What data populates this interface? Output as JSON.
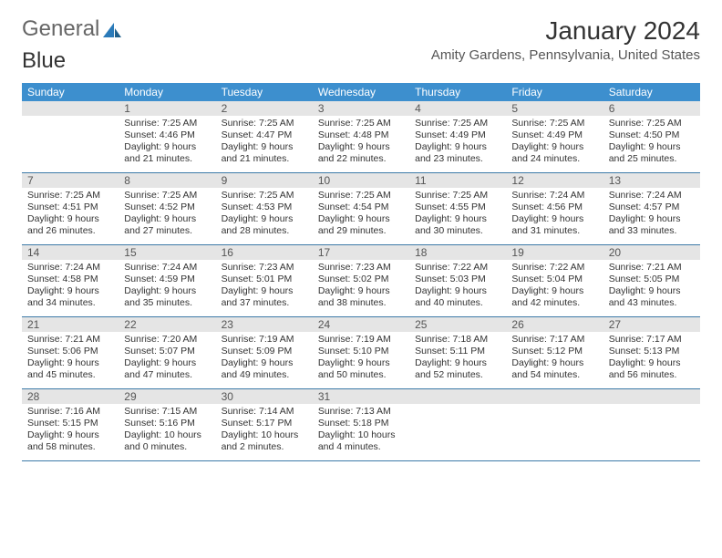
{
  "brand": {
    "part1": "General",
    "part2": "Blue"
  },
  "title": "January 2024",
  "location": "Amity Gardens, Pennsylvania, United States",
  "colors": {
    "header_bg": "#3d8fce",
    "header_text": "#ffffff",
    "daynum_bg": "#e5e5e5",
    "row_border": "#3d7aa8",
    "brand_blue": "#2a7ab9"
  },
  "weekdays": [
    "Sunday",
    "Monday",
    "Tuesday",
    "Wednesday",
    "Thursday",
    "Friday",
    "Saturday"
  ],
  "weeks": [
    [
      {
        "n": "",
        "sr": "",
        "ss": "",
        "d1": "",
        "d2": ""
      },
      {
        "n": "1",
        "sr": "Sunrise: 7:25 AM",
        "ss": "Sunset: 4:46 PM",
        "d1": "Daylight: 9 hours",
        "d2": "and 21 minutes."
      },
      {
        "n": "2",
        "sr": "Sunrise: 7:25 AM",
        "ss": "Sunset: 4:47 PM",
        "d1": "Daylight: 9 hours",
        "d2": "and 21 minutes."
      },
      {
        "n": "3",
        "sr": "Sunrise: 7:25 AM",
        "ss": "Sunset: 4:48 PM",
        "d1": "Daylight: 9 hours",
        "d2": "and 22 minutes."
      },
      {
        "n": "4",
        "sr": "Sunrise: 7:25 AM",
        "ss": "Sunset: 4:49 PM",
        "d1": "Daylight: 9 hours",
        "d2": "and 23 minutes."
      },
      {
        "n": "5",
        "sr": "Sunrise: 7:25 AM",
        "ss": "Sunset: 4:49 PM",
        "d1": "Daylight: 9 hours",
        "d2": "and 24 minutes."
      },
      {
        "n": "6",
        "sr": "Sunrise: 7:25 AM",
        "ss": "Sunset: 4:50 PM",
        "d1": "Daylight: 9 hours",
        "d2": "and 25 minutes."
      }
    ],
    [
      {
        "n": "7",
        "sr": "Sunrise: 7:25 AM",
        "ss": "Sunset: 4:51 PM",
        "d1": "Daylight: 9 hours",
        "d2": "and 26 minutes."
      },
      {
        "n": "8",
        "sr": "Sunrise: 7:25 AM",
        "ss": "Sunset: 4:52 PM",
        "d1": "Daylight: 9 hours",
        "d2": "and 27 minutes."
      },
      {
        "n": "9",
        "sr": "Sunrise: 7:25 AM",
        "ss": "Sunset: 4:53 PM",
        "d1": "Daylight: 9 hours",
        "d2": "and 28 minutes."
      },
      {
        "n": "10",
        "sr": "Sunrise: 7:25 AM",
        "ss": "Sunset: 4:54 PM",
        "d1": "Daylight: 9 hours",
        "d2": "and 29 minutes."
      },
      {
        "n": "11",
        "sr": "Sunrise: 7:25 AM",
        "ss": "Sunset: 4:55 PM",
        "d1": "Daylight: 9 hours",
        "d2": "and 30 minutes."
      },
      {
        "n": "12",
        "sr": "Sunrise: 7:24 AM",
        "ss": "Sunset: 4:56 PM",
        "d1": "Daylight: 9 hours",
        "d2": "and 31 minutes."
      },
      {
        "n": "13",
        "sr": "Sunrise: 7:24 AM",
        "ss": "Sunset: 4:57 PM",
        "d1": "Daylight: 9 hours",
        "d2": "and 33 minutes."
      }
    ],
    [
      {
        "n": "14",
        "sr": "Sunrise: 7:24 AM",
        "ss": "Sunset: 4:58 PM",
        "d1": "Daylight: 9 hours",
        "d2": "and 34 minutes."
      },
      {
        "n": "15",
        "sr": "Sunrise: 7:24 AM",
        "ss": "Sunset: 4:59 PM",
        "d1": "Daylight: 9 hours",
        "d2": "and 35 minutes."
      },
      {
        "n": "16",
        "sr": "Sunrise: 7:23 AM",
        "ss": "Sunset: 5:01 PM",
        "d1": "Daylight: 9 hours",
        "d2": "and 37 minutes."
      },
      {
        "n": "17",
        "sr": "Sunrise: 7:23 AM",
        "ss": "Sunset: 5:02 PM",
        "d1": "Daylight: 9 hours",
        "d2": "and 38 minutes."
      },
      {
        "n": "18",
        "sr": "Sunrise: 7:22 AM",
        "ss": "Sunset: 5:03 PM",
        "d1": "Daylight: 9 hours",
        "d2": "and 40 minutes."
      },
      {
        "n": "19",
        "sr": "Sunrise: 7:22 AM",
        "ss": "Sunset: 5:04 PM",
        "d1": "Daylight: 9 hours",
        "d2": "and 42 minutes."
      },
      {
        "n": "20",
        "sr": "Sunrise: 7:21 AM",
        "ss": "Sunset: 5:05 PM",
        "d1": "Daylight: 9 hours",
        "d2": "and 43 minutes."
      }
    ],
    [
      {
        "n": "21",
        "sr": "Sunrise: 7:21 AM",
        "ss": "Sunset: 5:06 PM",
        "d1": "Daylight: 9 hours",
        "d2": "and 45 minutes."
      },
      {
        "n": "22",
        "sr": "Sunrise: 7:20 AM",
        "ss": "Sunset: 5:07 PM",
        "d1": "Daylight: 9 hours",
        "d2": "and 47 minutes."
      },
      {
        "n": "23",
        "sr": "Sunrise: 7:19 AM",
        "ss": "Sunset: 5:09 PM",
        "d1": "Daylight: 9 hours",
        "d2": "and 49 minutes."
      },
      {
        "n": "24",
        "sr": "Sunrise: 7:19 AM",
        "ss": "Sunset: 5:10 PM",
        "d1": "Daylight: 9 hours",
        "d2": "and 50 minutes."
      },
      {
        "n": "25",
        "sr": "Sunrise: 7:18 AM",
        "ss": "Sunset: 5:11 PM",
        "d1": "Daylight: 9 hours",
        "d2": "and 52 minutes."
      },
      {
        "n": "26",
        "sr": "Sunrise: 7:17 AM",
        "ss": "Sunset: 5:12 PM",
        "d1": "Daylight: 9 hours",
        "d2": "and 54 minutes."
      },
      {
        "n": "27",
        "sr": "Sunrise: 7:17 AM",
        "ss": "Sunset: 5:13 PM",
        "d1": "Daylight: 9 hours",
        "d2": "and 56 minutes."
      }
    ],
    [
      {
        "n": "28",
        "sr": "Sunrise: 7:16 AM",
        "ss": "Sunset: 5:15 PM",
        "d1": "Daylight: 9 hours",
        "d2": "and 58 minutes."
      },
      {
        "n": "29",
        "sr": "Sunrise: 7:15 AM",
        "ss": "Sunset: 5:16 PM",
        "d1": "Daylight: 10 hours",
        "d2": "and 0 minutes."
      },
      {
        "n": "30",
        "sr": "Sunrise: 7:14 AM",
        "ss": "Sunset: 5:17 PM",
        "d1": "Daylight: 10 hours",
        "d2": "and 2 minutes."
      },
      {
        "n": "31",
        "sr": "Sunrise: 7:13 AM",
        "ss": "Sunset: 5:18 PM",
        "d1": "Daylight: 10 hours",
        "d2": "and 4 minutes."
      },
      {
        "n": "",
        "sr": "",
        "ss": "",
        "d1": "",
        "d2": ""
      },
      {
        "n": "",
        "sr": "",
        "ss": "",
        "d1": "",
        "d2": ""
      },
      {
        "n": "",
        "sr": "",
        "ss": "",
        "d1": "",
        "d2": ""
      }
    ]
  ]
}
